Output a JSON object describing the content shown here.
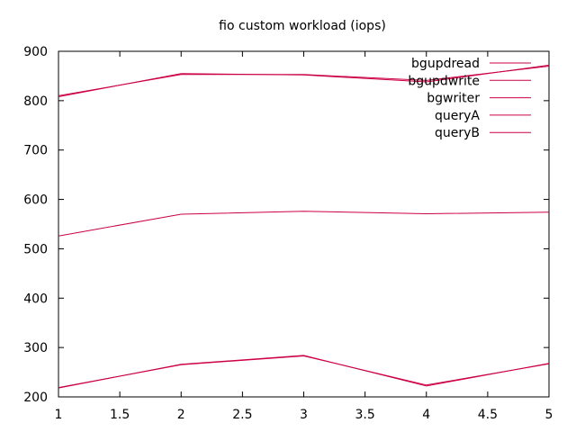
{
  "chart_data": {
    "type": "line",
    "title": "fio custom workload (iops)",
    "xlabel": "",
    "ylabel": "",
    "xlim": [
      1,
      5
    ],
    "ylim": [
      200,
      900
    ],
    "x_ticks": [
      "1",
      "1.5",
      "2",
      "2.5",
      "3",
      "3.5",
      "4",
      "4.5",
      "5"
    ],
    "y_ticks": [
      "200",
      "300",
      "400",
      "500",
      "600",
      "700",
      "800",
      "900"
    ],
    "x": [
      1,
      2,
      3,
      4,
      5
    ],
    "grid": false,
    "legend_position": "top-right",
    "line_color": "#cc0044",
    "series": [
      {
        "name": "bgupdread",
        "values": [
          808,
          855,
          852,
          838,
          872
        ]
      },
      {
        "name": "bgupdwrite",
        "values": [
          810,
          853,
          853,
          841,
          870
        ]
      },
      {
        "name": "bgwriter",
        "values": [
          526,
          570,
          576,
          571,
          574
        ]
      },
      {
        "name": "queryA",
        "values": [
          219,
          265,
          283,
          224,
          267
        ]
      },
      {
        "name": "queryB",
        "values": [
          218,
          266,
          284,
          222,
          268
        ]
      }
    ]
  }
}
